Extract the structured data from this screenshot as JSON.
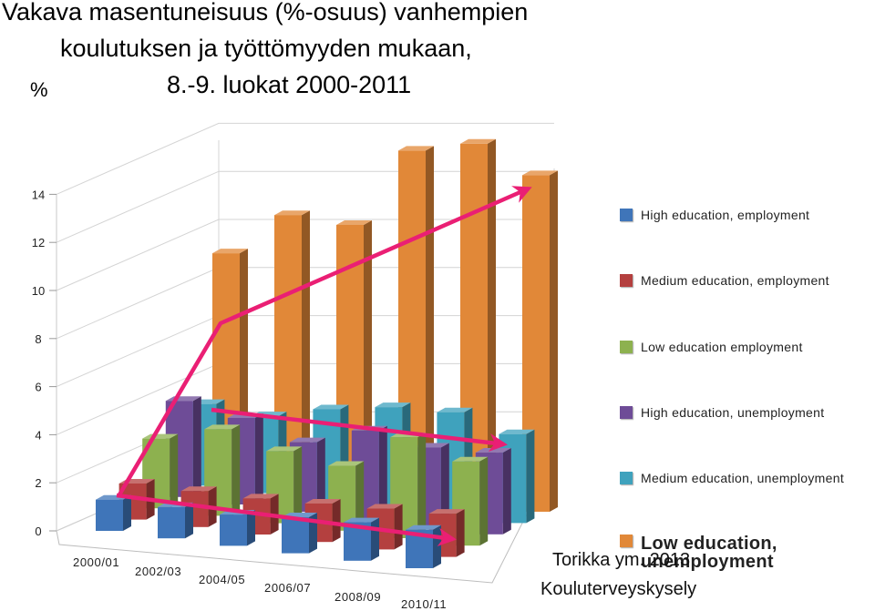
{
  "title_lines": [
    "Vakava masentuneisuus (%-osuus) vanhempien",
    "koulutuksen ja työttömyyden mukaan,",
    "8.-9. luokat 2000-2011"
  ],
  "unit_label": "%",
  "credits": [
    "Torikka ym. 2013",
    "Kouluterveyskysely"
  ],
  "chart_data": {
    "type": "bar",
    "title": "Vakava masentuneisuus (%-osuus) vanhempien koulutuksen ja työttömyyden mukaan, 8.-9. luokat 2000-2011",
    "ylabel": "%",
    "ylim": [
      0,
      14
    ],
    "yticks": [
      0,
      2,
      4,
      6,
      8,
      10,
      12,
      14
    ],
    "grid": true,
    "legend_position": "right",
    "categories": [
      "2000/01",
      "2002/03",
      "2004/05",
      "2006/07",
      "2008/09",
      "2010/11"
    ],
    "series": [
      {
        "name": "High education, employment",
        "color": "#3f75b9",
        "values": [
          1.3,
          1.3,
          1.3,
          1.5,
          1.6,
          1.6
        ]
      },
      {
        "name": "Medium education, employment",
        "color": "#b4403f",
        "values": [
          1.5,
          1.5,
          1.5,
          1.6,
          1.7,
          1.8
        ]
      },
      {
        "name": "Low education employment",
        "color": "#8db14f",
        "values": [
          2.9,
          3.6,
          3.0,
          2.7,
          4.2,
          3.5
        ]
      },
      {
        "name": "High education, unemployment",
        "color": "#6e4c97",
        "values": [
          4.0,
          3.6,
          2.9,
          3.7,
          3.3,
          3.4
        ]
      },
      {
        "name": "Medium education, unemployment",
        "color": "#3fa2bd",
        "values": [
          3.4,
          3.2,
          3.8,
          4.2,
          4.3,
          3.7
        ]
      },
      {
        "name": "Low education, unemployment",
        "color": "#e18838",
        "values": [
          9.2,
          11.1,
          11.0,
          14.4,
          15.0,
          14.0
        ]
      }
    ]
  }
}
